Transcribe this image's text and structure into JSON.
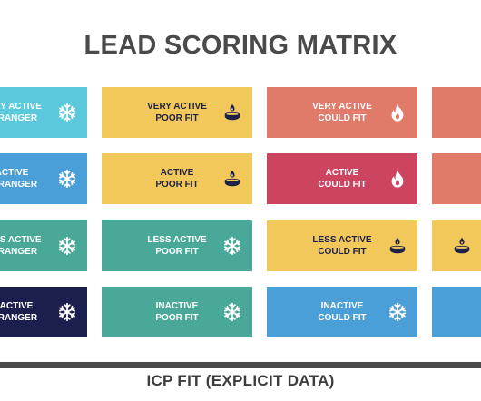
{
  "title": "LEAD SCORING MATRIX",
  "x_axis_label": "ICP FIT (EXPLICIT DATA)",
  "colors": {
    "cyan": "#5bc8dc",
    "yellow": "#f2c85b",
    "salmon": "#e07b6a",
    "blue": "#4a9fd8",
    "crimson": "#cc4460",
    "teal": "#4aa898",
    "navy": "#1c1e4e",
    "dark_text": "#1f2246",
    "white_text": "#ffffff"
  },
  "rows": [
    {
      "cells": [
        {
          "line1": "VERY ACTIVE",
          "line2": "STRANGER",
          "icon": "snowflake-icon",
          "bg": "#5bc8dc",
          "fg": "#ffffff"
        },
        {
          "line1": "VERY ACTIVE",
          "line2": "POOR FIT",
          "icon": "candle-icon",
          "bg": "#f2c85b",
          "fg": "#1f2246"
        },
        {
          "line1": "VERY ACTIVE",
          "line2": "COULD FIT",
          "icon": "fire-icon",
          "bg": "#e07b6a",
          "fg": "#ffffff"
        },
        {
          "line1": "",
          "line2": "",
          "icon": "",
          "bg": "#e07b6a",
          "fg": "#ffffff"
        }
      ]
    },
    {
      "cells": [
        {
          "line1": "ACTIVE",
          "line2": "STRANGER",
          "icon": "snowflake-icon",
          "bg": "#4a9fd8",
          "fg": "#ffffff"
        },
        {
          "line1": "ACTIVE",
          "line2": "POOR FIT",
          "icon": "candle-icon",
          "bg": "#f2c85b",
          "fg": "#1f2246"
        },
        {
          "line1": "ACTIVE",
          "line2": "COULD FIT",
          "icon": "fire-icon",
          "bg": "#cc4460",
          "fg": "#ffffff"
        },
        {
          "line1": "",
          "line2": "",
          "icon": "",
          "bg": "#e07b6a",
          "fg": "#ffffff"
        }
      ]
    },
    {
      "cells": [
        {
          "line1": "LESS ACTIVE",
          "line2": "STRANGER",
          "icon": "snowflake-icon",
          "bg": "#4aa898",
          "fg": "#ffffff"
        },
        {
          "line1": "LESS ACTIVE",
          "line2": "POOR FIT",
          "icon": "snowflake-icon",
          "bg": "#4aa898",
          "fg": "#ffffff"
        },
        {
          "line1": "LESS ACTIVE",
          "line2": "COULD FIT",
          "icon": "candle-icon",
          "bg": "#f2c85b",
          "fg": "#1f2246"
        },
        {
          "line1": "",
          "line2": "",
          "icon": "candle-icon",
          "bg": "#f2c85b",
          "fg": "#1f2246"
        }
      ]
    },
    {
      "cells": [
        {
          "line1": "INACTIVE",
          "line2": "STRANGER",
          "icon": "snowflake-icon",
          "bg": "#1c1e4e",
          "fg": "#ffffff"
        },
        {
          "line1": "INACTIVE",
          "line2": "POOR FIT",
          "icon": "snowflake-icon",
          "bg": "#4aa898",
          "fg": "#ffffff"
        },
        {
          "line1": "INACTIVE",
          "line2": "COULD FIT",
          "icon": "snowflake-icon",
          "bg": "#4a9fd8",
          "fg": "#ffffff"
        },
        {
          "line1": "",
          "line2": "",
          "icon": "",
          "bg": "#4a9fd8",
          "fg": "#ffffff"
        }
      ]
    }
  ]
}
